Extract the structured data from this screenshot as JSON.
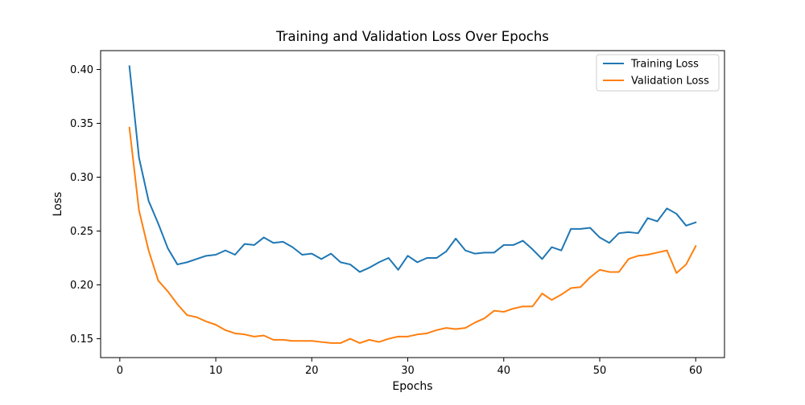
{
  "chart_data": {
    "type": "line",
    "title": "Training and Validation Loss Over Epochs",
    "xlabel": "Epochs",
    "ylabel": "Loss",
    "xlim": [
      -2,
      63
    ],
    "ylim": [
      0.1325,
      0.4175
    ],
    "x_ticks": [
      0,
      10,
      20,
      30,
      40,
      50,
      60
    ],
    "y_ticks": [
      0.15,
      0.2,
      0.25,
      0.3,
      0.35,
      0.4
    ],
    "y_tick_labels": [
      "0.15",
      "0.20",
      "0.25",
      "0.30",
      "0.35",
      "0.40"
    ],
    "grid": false,
    "legend_position": "top-right",
    "x": [
      1,
      2,
      3,
      4,
      5,
      6,
      7,
      8,
      9,
      10,
      11,
      12,
      13,
      14,
      15,
      16,
      17,
      18,
      19,
      20,
      21,
      22,
      23,
      24,
      25,
      26,
      27,
      28,
      29,
      30,
      31,
      32,
      33,
      34,
      35,
      36,
      37,
      38,
      39,
      40,
      41,
      42,
      43,
      44,
      45,
      46,
      47,
      48,
      49,
      50,
      51,
      52,
      53,
      54,
      55,
      56,
      57,
      58,
      59,
      60
    ],
    "series": [
      {
        "name": "Training Loss",
        "color": "#1f77b4",
        "values": [
          0.403,
          0.318,
          0.278,
          0.257,
          0.234,
          0.219,
          0.221,
          0.224,
          0.227,
          0.228,
          0.232,
          0.228,
          0.238,
          0.237,
          0.244,
          0.239,
          0.24,
          0.235,
          0.228,
          0.229,
          0.224,
          0.229,
          0.221,
          0.219,
          0.212,
          0.216,
          0.221,
          0.225,
          0.214,
          0.227,
          0.221,
          0.225,
          0.225,
          0.231,
          0.243,
          0.232,
          0.229,
          0.23,
          0.23,
          0.237,
          0.237,
          0.241,
          0.233,
          0.224,
          0.235,
          0.232,
          0.252,
          0.252,
          0.253,
          0.244,
          0.239,
          0.248,
          0.249,
          0.248,
          0.262,
          0.259,
          0.271,
          0.266,
          0.255,
          0.258
        ]
      },
      {
        "name": "Validation Loss",
        "color": "#ff7f0e",
        "values": [
          0.346,
          0.269,
          0.232,
          0.204,
          0.194,
          0.182,
          0.172,
          0.17,
          0.166,
          0.163,
          0.158,
          0.155,
          0.154,
          0.152,
          0.153,
          0.149,
          0.149,
          0.148,
          0.148,
          0.148,
          0.147,
          0.146,
          0.146,
          0.15,
          0.146,
          0.149,
          0.147,
          0.15,
          0.152,
          0.152,
          0.154,
          0.155,
          0.158,
          0.16,
          0.159,
          0.16,
          0.165,
          0.169,
          0.176,
          0.175,
          0.178,
          0.18,
          0.18,
          0.192,
          0.186,
          0.191,
          0.197,
          0.198,
          0.207,
          0.214,
          0.212,
          0.212,
          0.224,
          0.227,
          0.228,
          0.23,
          0.232,
          0.211,
          0.219,
          0.236
        ]
      }
    ]
  }
}
